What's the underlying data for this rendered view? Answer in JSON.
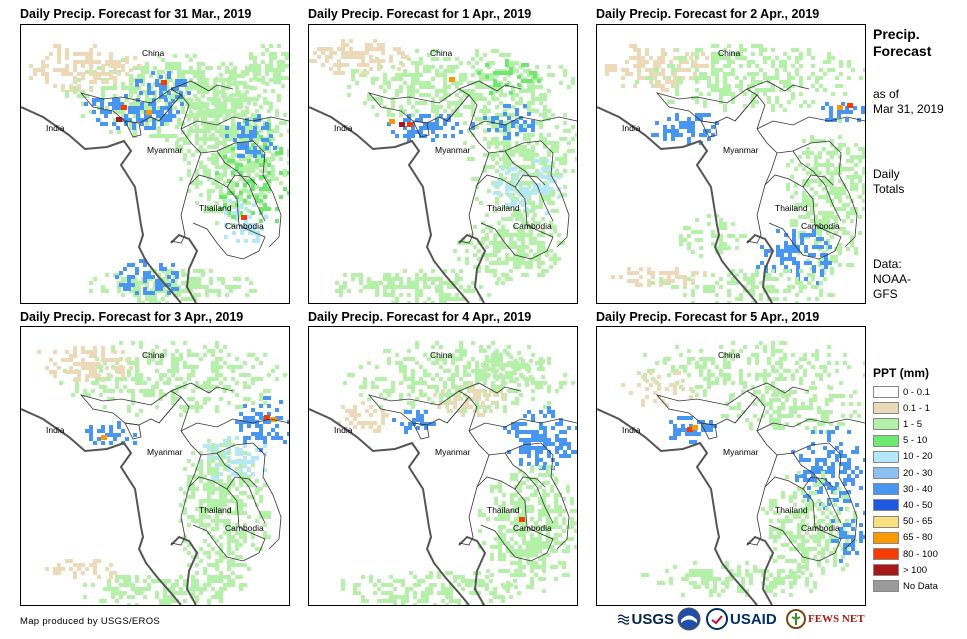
{
  "panels": [
    {
      "title": "Daily Precip. Forecast for 31 Mar., 2019"
    },
    {
      "title": "Daily Precip. Forecast for 1 Apr., 2019"
    },
    {
      "title": "Daily Precip. Forecast for 2 Apr., 2019"
    },
    {
      "title": "Daily Precip. Forecast for 3 Apr., 2019"
    },
    {
      "title": "Daily Precip. Forecast for 4 Apr., 2019"
    },
    {
      "title": "Daily Precip. Forecast for 5 Apr., 2019"
    }
  ],
  "map_labels": {
    "china": "China",
    "india": "India",
    "myanmar": "Myanmar",
    "thailand": "Thailand",
    "cambodia": "Cambodia"
  },
  "sidebar": {
    "heading_line1": "Precip.",
    "heading_line2": "Forecast",
    "asof_line1": "as of",
    "asof_line2": "Mar 31, 2019",
    "daily_line1": "Daily",
    "daily_line2": "Totals",
    "data_line1": "Data:",
    "data_line2": "NOAA-",
    "data_line3": "GFS"
  },
  "legend": {
    "title": "PPT (mm)",
    "items": [
      {
        "label": "0 - 0.1",
        "color": "#ffffff"
      },
      {
        "label": "0.1 - 1",
        "color": "#ebd9b8"
      },
      {
        "label": "1 - 5",
        "color": "#b4f0a8"
      },
      {
        "label": "5 - 10",
        "color": "#6ee86e"
      },
      {
        "label": "10 - 20",
        "color": "#b4e8f8"
      },
      {
        "label": "20 - 30",
        "color": "#8cc0f0"
      },
      {
        "label": "30 - 40",
        "color": "#4896f0"
      },
      {
        "label": "40 - 50",
        "color": "#1e5ae0"
      },
      {
        "label": "50 - 65",
        "color": "#f8e080"
      },
      {
        "label": "65 - 80",
        "color": "#f89a00"
      },
      {
        "label": "80 - 100",
        "color": "#f83c00"
      },
      {
        "label": "> 100",
        "color": "#a81818"
      },
      {
        "label": "No Data",
        "color": "#9a9a9a"
      }
    ]
  },
  "footer": {
    "credit": "Map produced by USGS/EROS"
  },
  "logos": {
    "usgs": "USGS",
    "usaid": "USAID",
    "fewsnet": "FEWS NET"
  }
}
